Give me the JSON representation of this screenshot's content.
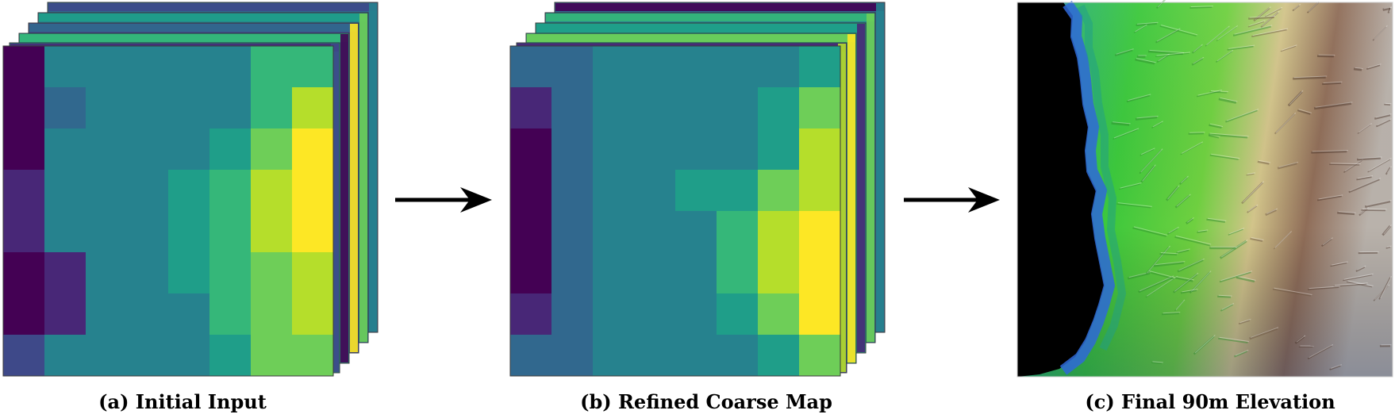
{
  "captions": {
    "a": "(a) Initial Input",
    "b": "(b) Refined Coarse Map",
    "c": "(c) Final 90m Elevation"
  },
  "palette": {
    "viridis": [
      "#440154",
      "#482777",
      "#3e4989",
      "#31688e",
      "#26828e",
      "#1f9e89",
      "#35b779",
      "#6ece58",
      "#b5de2b",
      "#fde725"
    ],
    "ocean": "#000000",
    "lowland_blue": "#2a5fc4",
    "plain_green": "#3cc83c",
    "highland_tan": "#c9b48a",
    "mountain_brown": "#7a5a4a"
  },
  "grids": {
    "initial_input": [
      [
        0,
        4,
        4,
        4,
        4,
        4,
        6,
        6
      ],
      [
        0,
        3,
        4,
        4,
        4,
        4,
        6,
        8
      ],
      [
        0,
        4,
        4,
        4,
        4,
        5,
        7,
        9
      ],
      [
        1,
        4,
        4,
        4,
        5,
        6,
        8,
        9
      ],
      [
        1,
        4,
        4,
        4,
        5,
        6,
        8,
        9
      ],
      [
        0,
        1,
        4,
        4,
        5,
        6,
        7,
        8
      ],
      [
        0,
        1,
        4,
        4,
        4,
        6,
        7,
        8
      ],
      [
        2,
        4,
        4,
        4,
        4,
        5,
        7,
        7
      ]
    ],
    "refined_coarse": [
      [
        3,
        3,
        4,
        4,
        4,
        4,
        4,
        5
      ],
      [
        1,
        3,
        4,
        4,
        4,
        4,
        5,
        7
      ],
      [
        0,
        3,
        4,
        4,
        4,
        4,
        5,
        8
      ],
      [
        0,
        3,
        4,
        4,
        5,
        5,
        7,
        8
      ],
      [
        0,
        3,
        4,
        4,
        4,
        6,
        8,
        9
      ],
      [
        0,
        3,
        4,
        4,
        4,
        6,
        8,
        9
      ],
      [
        1,
        3,
        4,
        4,
        4,
        5,
        7,
        9
      ],
      [
        3,
        3,
        4,
        4,
        4,
        4,
        5,
        7
      ]
    ]
  }
}
